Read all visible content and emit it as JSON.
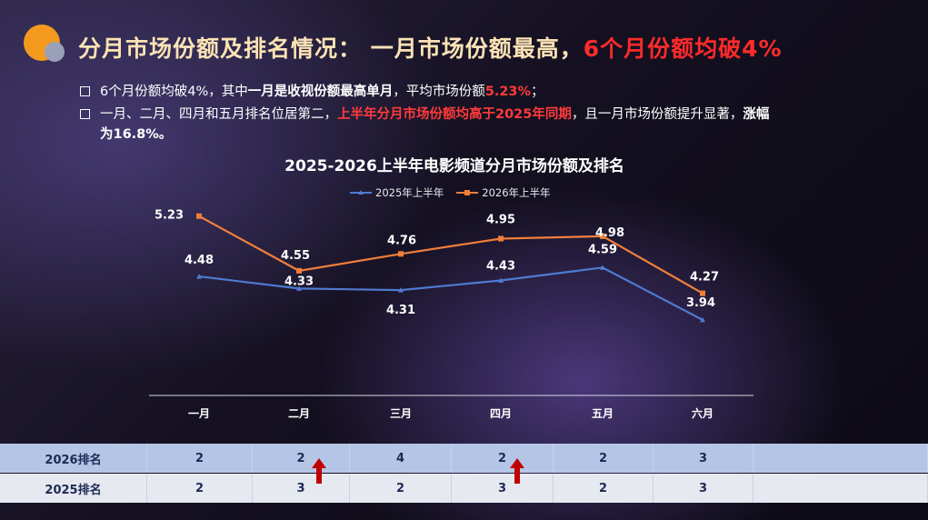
{
  "header": {
    "title_main": "分月市场份额及排名情况：  一月市场份额最高，",
    "title_highlight": "6个月份额均破4%"
  },
  "bullets": [
    {
      "parts": [
        {
          "text": "6个月份额均破4%，其中",
          "style": "n"
        },
        {
          "text": "一月是收视份额最高单月",
          "style": "b"
        },
        {
          "text": "，平均市场份额",
          "style": "n"
        },
        {
          "text": "5.23%",
          "style": "r"
        },
        {
          "text": "；",
          "style": "n"
        }
      ]
    },
    {
      "parts": [
        {
          "text": "一月、二月、四月和五月排名位居第二，",
          "style": "n"
        },
        {
          "text": "上半年分月市场份额均高于2025年同期",
          "style": "r"
        },
        {
          "text": "，且一月市场份额提升显著，",
          "style": "n"
        },
        {
          "text": "涨幅",
          "style": "b"
        }
      ]
    },
    {
      "parts": [
        {
          "text": "为16.8%。",
          "style": "b"
        }
      ]
    }
  ],
  "chart_data": {
    "type": "line",
    "title": "2025-2026上半年电影频道分月市场份额及排名",
    "categories": [
      "一月",
      "二月",
      "三月",
      "四月",
      "五月",
      "六月"
    ],
    "series": [
      {
        "name": "2025年上半年",
        "values": [
          4.48,
          4.33,
          4.31,
          4.43,
          4.59,
          3.94
        ],
        "color": "#4f7ad0"
      },
      {
        "name": "2026年上半年",
        "values": [
          5.23,
          4.55,
          4.76,
          4.95,
          4.98,
          4.27
        ],
        "color": "#f07f3a"
      }
    ],
    "data_labels": {
      "2025年上半年": [
        "4.48",
        "4.33",
        "4.31",
        "4.43",
        "4.59",
        "3.94"
      ],
      "2026年上半年": [
        "5.23",
        "4.55",
        "4.76",
        "4.95",
        "4.98",
        "4.27"
      ]
    },
    "ylim": [
      3.0,
      5.6
    ],
    "grid": false,
    "legend_position": "top"
  },
  "ranking_table": {
    "rows": [
      {
        "label": "2026排名",
        "values": [
          "2",
          "2",
          "4",
          "2",
          "2",
          "3"
        ]
      },
      {
        "label": "2025排名",
        "values": [
          "2",
          "3",
          "2",
          "3",
          "2",
          "3"
        ]
      }
    ],
    "up_arrows_after_columns": [
      "二月",
      "四月"
    ],
    "arrow_color": "#c00000"
  }
}
